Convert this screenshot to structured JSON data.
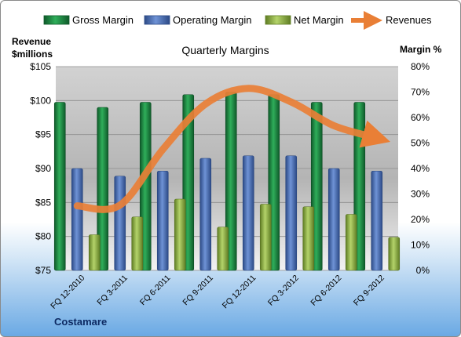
{
  "chart_data": {
    "type": "bar",
    "title": "Quarterly Margins",
    "categories": [
      "FQ 12-2010",
      "FQ 3-2011",
      "FQ 6-2011",
      "FQ 9-2011",
      "FQ 12-2011",
      "FQ 3-2012",
      "FQ 6-2012",
      "FQ 9-2012"
    ],
    "series": [
      {
        "name": "Gross Margin",
        "axis": "right",
        "values": [
          66,
          64,
          66,
          69,
          70,
          69,
          66,
          66
        ],
        "color": "#1f8a43"
      },
      {
        "name": "Operating Margin",
        "axis": "right",
        "values": [
          40,
          37,
          39,
          44,
          45,
          45,
          40,
          39
        ],
        "color": "#4f73b8"
      },
      {
        "name": "Net Margin",
        "axis": "right",
        "values": [
          14,
          21,
          28,
          17,
          26,
          25,
          22,
          13
        ],
        "color": "#93b74a"
      },
      {
        "name": "Revenues",
        "axis": "left",
        "type": "line",
        "values": [
          84.5,
          84.6,
          92.8,
          99.5,
          101.8,
          99.8,
          96.3,
          94.5
        ],
        "color": "#e97f36"
      }
    ],
    "left_axis": {
      "label_line1": "Revenue",
      "label_line2": "$millions",
      "min": 75,
      "max": 105,
      "step": 5,
      "tick_labels": [
        "$75",
        "$80",
        "$85",
        "$90",
        "$95",
        "$100",
        "$105"
      ]
    },
    "right_axis": {
      "label": "Margin %",
      "min": 0,
      "max": 80,
      "step": 10,
      "tick_labels": [
        "0%",
        "10%",
        "20%",
        "30%",
        "40%",
        "50%",
        "60%",
        "70%",
        "80%"
      ]
    },
    "grid": true,
    "legend_position": "top",
    "legend": [
      "Gross Margin",
      "Operating Margin",
      "Net Margin",
      "Revenues"
    ]
  },
  "footer": {
    "company": "Costamare"
  }
}
